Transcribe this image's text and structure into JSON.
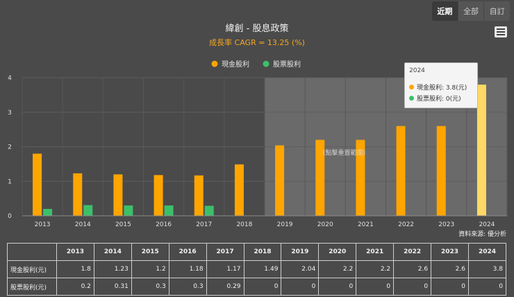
{
  "range_buttons": [
    {
      "label": "近期",
      "active": true
    },
    {
      "label": "全部",
      "active": false
    },
    {
      "label": "自訂",
      "active": false
    }
  ],
  "menu_icon": "hamburger-icon",
  "chart_data": {
    "type": "bar",
    "title": "緯創 - 股息政策",
    "subtitle": "成長率 CAGR = 13.25 (%)",
    "categories": [
      "2013",
      "2014",
      "2015",
      "2016",
      "2017",
      "2018",
      "2019",
      "2020",
      "2021",
      "2022",
      "2023",
      "2024"
    ],
    "series": [
      {
        "name": "現金股利",
        "color": "#ffa500",
        "values": [
          1.8,
          1.23,
          1.2,
          1.18,
          1.17,
          1.49,
          2.04,
          2.2,
          2.2,
          2.6,
          2.6,
          3.8
        ]
      },
      {
        "name": "股票股利",
        "color": "#3dbf6a",
        "values": [
          0.2,
          0.31,
          0.3,
          0.3,
          0.29,
          0,
          0,
          0,
          0,
          0,
          0,
          0
        ]
      }
    ],
    "ylim": [
      0,
      4
    ],
    "yticks": [
      "0",
      "1",
      "2",
      "3",
      "4"
    ],
    "legend_position": "top-center",
    "grid": true,
    "highlight_range": [
      "2019",
      "2024"
    ],
    "highlight_label": "(點擊重置範圍)",
    "hovered_category": "2024",
    "hover_color": "#ffd966",
    "source": "資料來源: 優分析"
  },
  "tooltip": {
    "title": "2024",
    "rows": [
      {
        "text": "現金股利: 3.8(元)",
        "color": "#ffa500"
      },
      {
        "text": "股票股利: 0(元)",
        "color": "#3dbf6a"
      }
    ]
  },
  "table": {
    "corner": "",
    "years": [
      "2013",
      "2014",
      "2015",
      "2016",
      "2017",
      "2018",
      "2019",
      "2020",
      "2021",
      "2022",
      "2023",
      "2024"
    ],
    "rows": [
      {
        "label": "現金股利(元)",
        "values": [
          "1.8",
          "1.23",
          "1.2",
          "1.18",
          "1.17",
          "1.49",
          "2.04",
          "2.2",
          "2.2",
          "2.6",
          "2.6",
          "3.8"
        ]
      },
      {
        "label": "股票股利(元)",
        "values": [
          "0.2",
          "0.31",
          "0.3",
          "0.3",
          "0.29",
          "0",
          "0",
          "0",
          "0",
          "0",
          "0",
          "0"
        ]
      }
    ]
  }
}
